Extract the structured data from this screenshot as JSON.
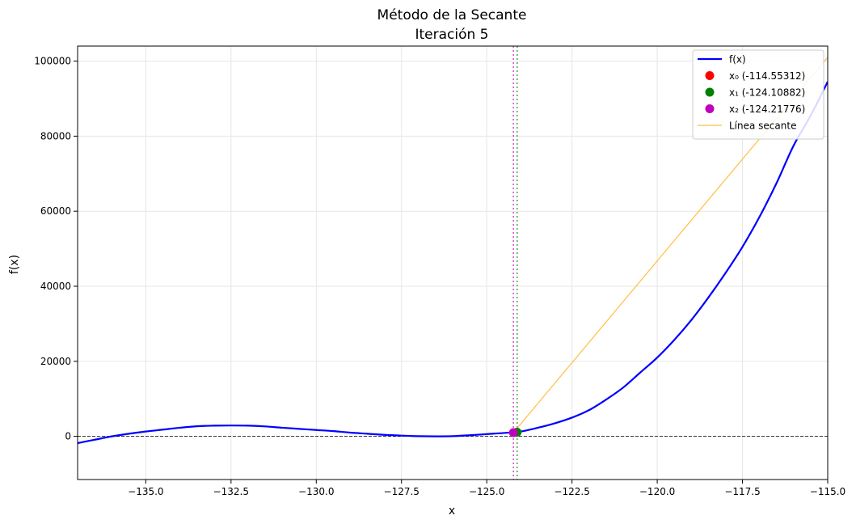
{
  "chart_data": {
    "type": "line",
    "title": "Método de la Secante",
    "subtitle": "Iteración 5",
    "xlabel": "x",
    "ylabel": "f(x)",
    "xlim": [
      -137,
      -115
    ],
    "ylim": [
      -11500,
      104000
    ],
    "grid": true,
    "legend_position": "top-right",
    "x_ticks": [
      -135.0,
      -132.5,
      -130.0,
      -127.5,
      -125.0,
      -122.5,
      -120.0,
      -117.5,
      -115.0
    ],
    "x_tick_labels": [
      "−135.0",
      "−132.5",
      "−130.0",
      "−127.5",
      "−125.0",
      "−122.5",
      "−120.0",
      "−117.5",
      "−115.0"
    ],
    "y_ticks": [
      0,
      20000,
      40000,
      60000,
      80000,
      100000
    ],
    "y_tick_labels": [
      "0",
      "20000",
      "40000",
      "60000",
      "80000",
      "100000"
    ],
    "curve": {
      "name": "f(x)",
      "color": "#0000ff",
      "x": [
        -137,
        -136.5,
        -136,
        -135.5,
        -135,
        -134.5,
        -134,
        -133.5,
        -133,
        -132.5,
        -132,
        -131.5,
        -131,
        -130.5,
        -130,
        -129.5,
        -129,
        -128.5,
        -128,
        -127.5,
        -127,
        -126.5,
        -126,
        -125.5,
        -125,
        -124.5,
        -124,
        -123.5,
        -123,
        -122.5,
        -122,
        -121.5,
        -121,
        -120.5,
        -120,
        -119.5,
        -119,
        -118.5,
        -118,
        -117.5,
        -117,
        -116.5,
        -116,
        -115.5,
        -115
      ],
      "y": [
        -1800,
        -900,
        0,
        700,
        1300,
        1800,
        2300,
        2700,
        2850,
        2900,
        2850,
        2650,
        2300,
        2000,
        1700,
        1400,
        1000,
        700,
        400,
        200,
        50,
        0,
        50,
        300,
        600,
        900,
        1300,
        2300,
        3500,
        5000,
        7000,
        9800,
        13000,
        17000,
        21000,
        25700,
        31000,
        37000,
        43500,
        50500,
        58500,
        67500,
        77500,
        85500,
        94500
      ]
    },
    "points": [
      {
        "label": "x₀ (-114.55312)",
        "x": -114.55312,
        "y": 104000,
        "color": "#ff0000"
      },
      {
        "label": "x₁ (-124.10882)",
        "x": -124.10882,
        "y": 1100,
        "color": "#008000"
      },
      {
        "label": "x₂ (-124.21776)",
        "x": -124.21776,
        "y": 1000,
        "color": "#bf00bf"
      }
    ],
    "secant": {
      "label": "Línea secante",
      "color": "#ffbf40",
      "x": [
        -124.21776,
        -115
      ],
      "y": [
        1000,
        101000
      ]
    },
    "zero_line": {
      "y": 0,
      "color": "#000000"
    },
    "vlines": [
      {
        "x": -124.21776,
        "color": "#bf00bf"
      },
      {
        "x": -124.10882,
        "color": "#008000"
      }
    ]
  }
}
